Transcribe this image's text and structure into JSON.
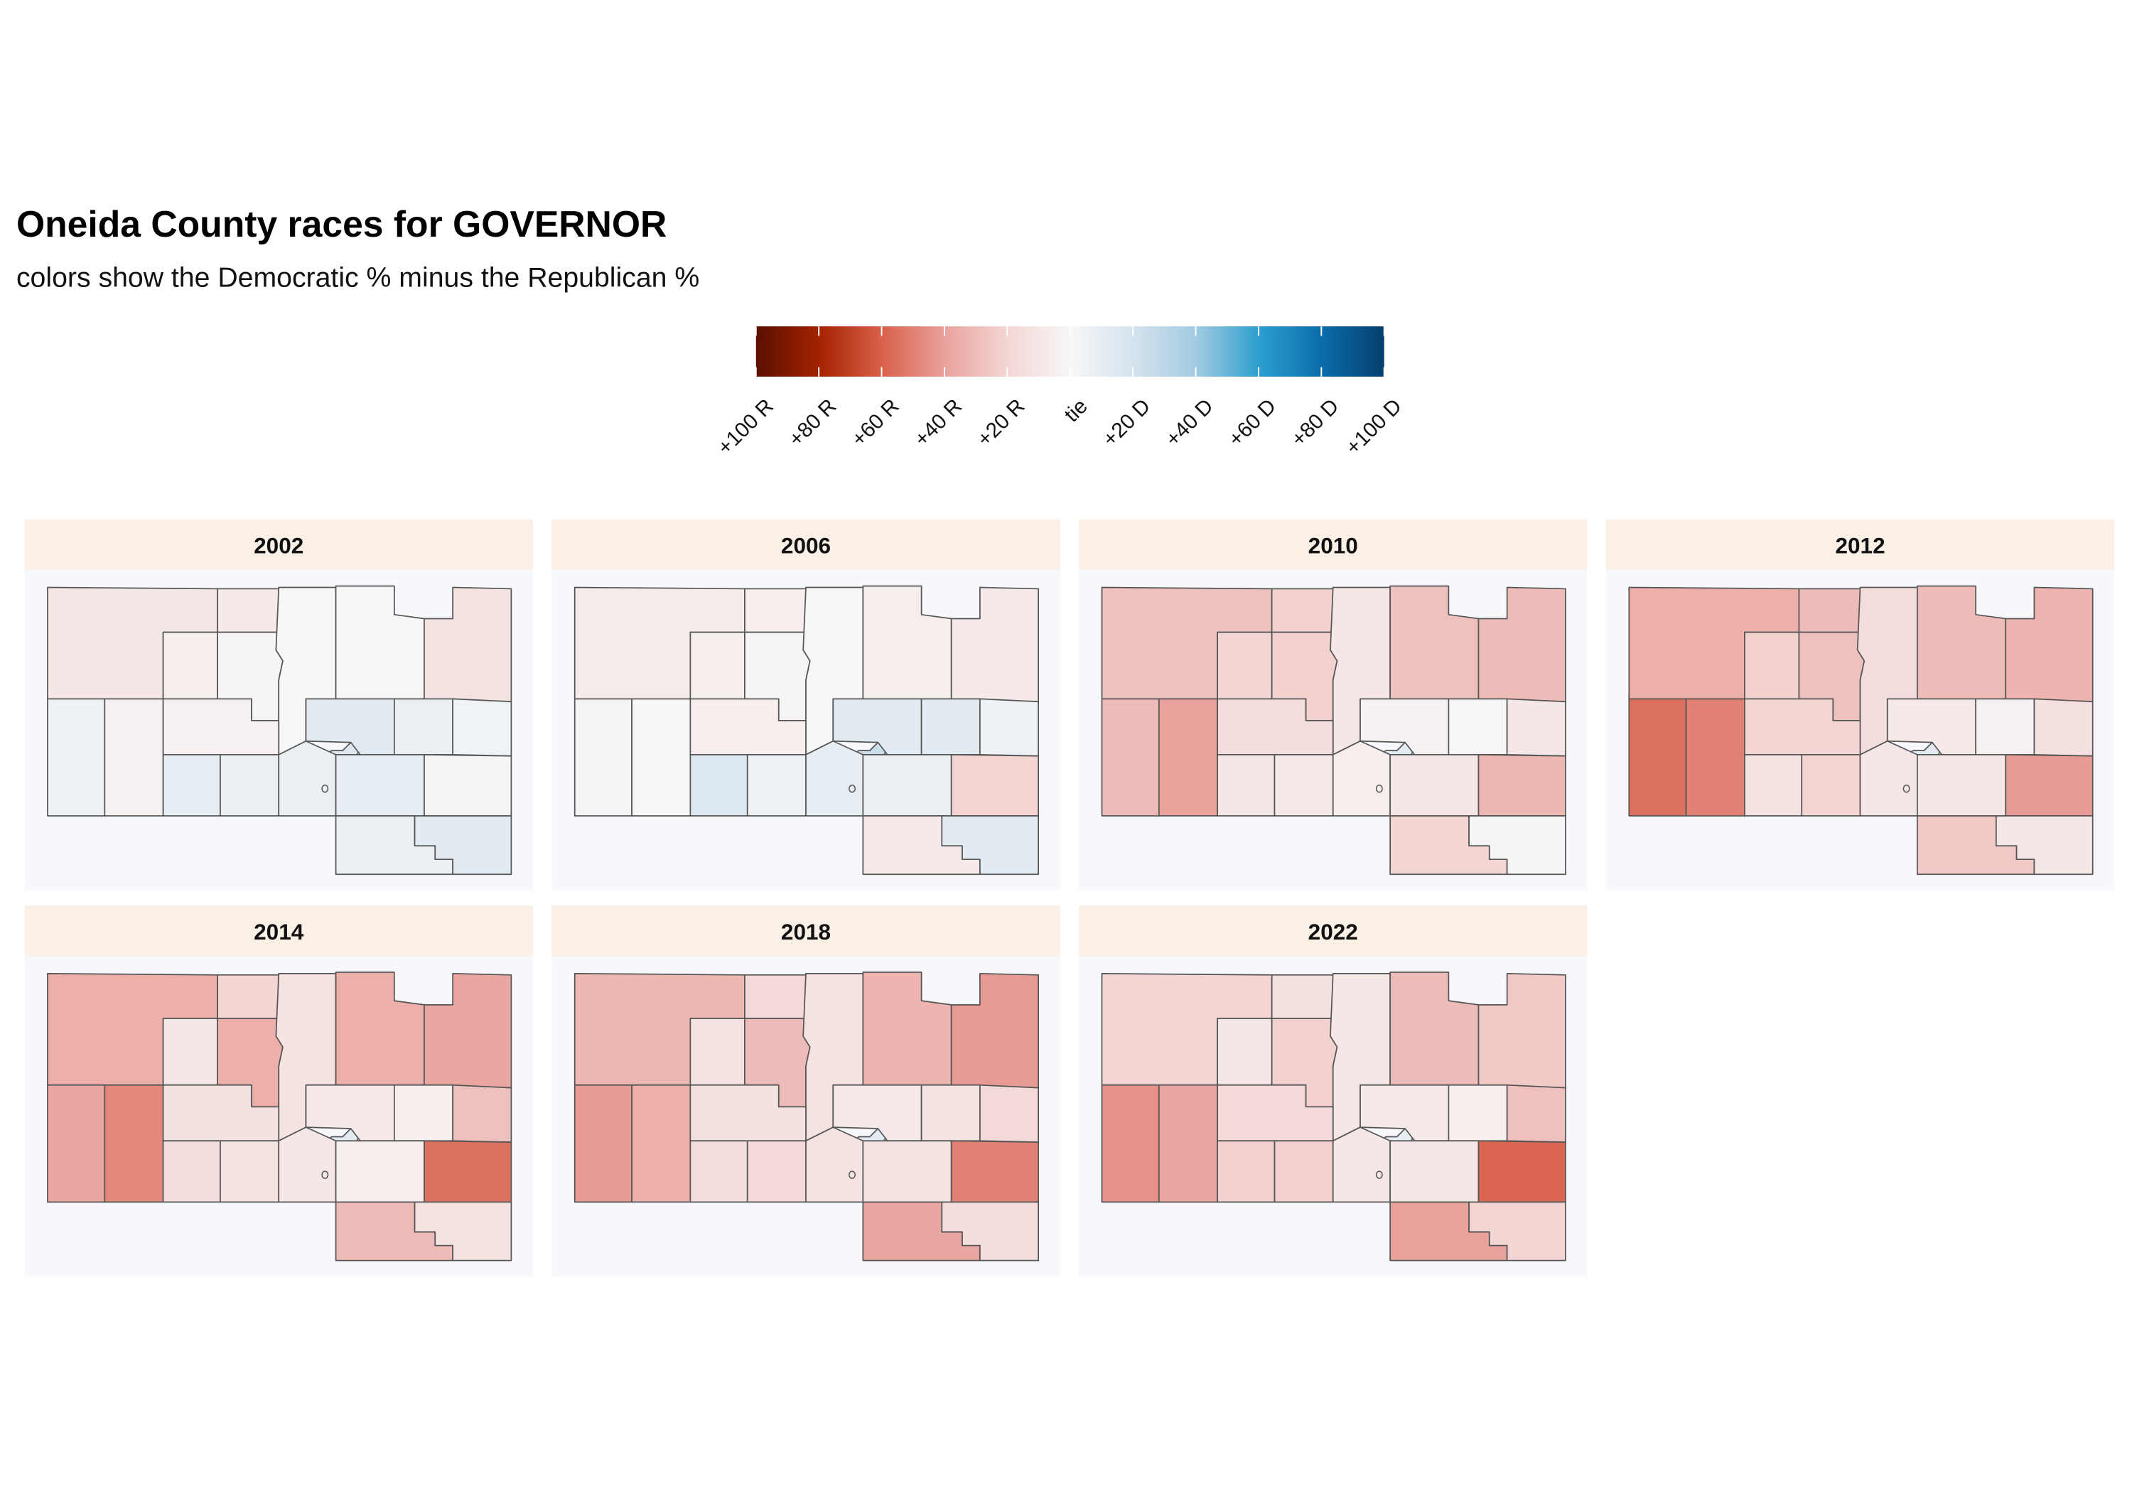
{
  "title": "Oneida County races for GOVERNOR",
  "subtitle": "colors show the Democratic % minus the Republican %",
  "legend": {
    "lim": [
      -100,
      100
    ],
    "ticks": [
      {
        "value": -100,
        "label": "+100 R"
      },
      {
        "value": -80,
        "label": "+80 R"
      },
      {
        "value": -60,
        "label": "+60 R"
      },
      {
        "value": -40,
        "label": "+40 R"
      },
      {
        "value": -20,
        "label": "+20 R"
      },
      {
        "value": 0,
        "label": "tie"
      },
      {
        "value": 20,
        "label": "+20 D"
      },
      {
        "value": 40,
        "label": "+40 D"
      },
      {
        "value": 60,
        "label": "+60 D"
      },
      {
        "value": 80,
        "label": "+80 D"
      },
      {
        "value": 100,
        "label": "+100 D"
      }
    ],
    "colors": [
      "#5a1000",
      "#a32200",
      "#d9604a",
      "#e9a29c",
      "#f3d6d4",
      "#f7f7f7",
      "#d5e3ee",
      "#a3cbe2",
      "#2d9fcf",
      "#0a6dab",
      "#053f6e"
    ]
  },
  "panels": [
    {
      "label": "2002",
      "values": [
        -10,
        -8,
        -5,
        -2,
        0,
        -1,
        -12,
        5,
        -4,
        -4,
        10,
        7,
        15,
        12,
        8,
        4,
        8,
        10,
        2,
        7,
        12
      ]
    },
    {
      "label": "2006",
      "values": [
        -7,
        -5,
        -5,
        -2,
        0,
        -6,
        -8,
        3,
        0,
        -5,
        15,
        5,
        25,
        12,
        12,
        5,
        10,
        8,
        -20,
        -8,
        12
      ]
    },
    {
      "label": "2010",
      "values": [
        -28,
        -22,
        -20,
        -22,
        -10,
        -28,
        -30,
        -30,
        -40,
        -15,
        -10,
        -8,
        12,
        -3,
        -1,
        -10,
        -6,
        -10,
        -32,
        -20,
        2
      ]
    },
    {
      "label": "2012",
      "values": [
        -35,
        -30,
        -22,
        -28,
        -15,
        -30,
        -33,
        -55,
        -50,
        -20,
        -12,
        -20,
        12,
        -8,
        -4,
        -14,
        -10,
        -10,
        -42,
        -25,
        -10
      ]
    },
    {
      "label": "2014",
      "values": [
        -35,
        -20,
        -10,
        -35,
        -12,
        -35,
        -38,
        -38,
        -48,
        -13,
        -15,
        -12,
        12,
        -8,
        -5,
        -28,
        -10,
        -6,
        -55,
        -30,
        -12
      ]
    },
    {
      "label": "2018",
      "values": [
        -32,
        -18,
        -12,
        -30,
        -12,
        -33,
        -42,
        -42,
        -35,
        -13,
        -15,
        -18,
        12,
        -8,
        -12,
        -18,
        -12,
        -12,
        -50,
        -38,
        -15
      ]
    },
    {
      "label": "2022",
      "values": [
        -20,
        -14,
        -10,
        -22,
        -10,
        -30,
        -25,
        -45,
        -38,
        -18,
        -22,
        -22,
        10,
        -8,
        -5,
        -28,
        -10,
        -10,
        -58,
        -40,
        -20
      ]
    }
  ]
}
